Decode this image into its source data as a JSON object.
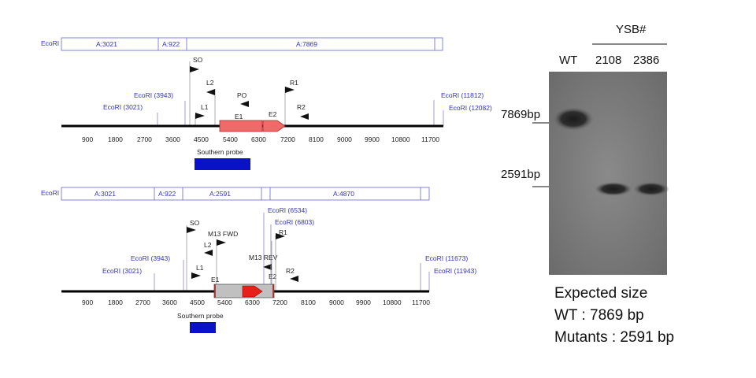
{
  "map1": {
    "enzyme_label": "EcoRI",
    "fragments": [
      "A:3021",
      "A:922",
      "A:7869"
    ],
    "sites": [
      "EcoRI (3943)",
      "EcoRI (3021)",
      "EcoRI (11812)",
      "EcoRI (12082)"
    ],
    "primers": [
      "SO",
      "L2",
      "L1",
      "PO",
      "E1",
      "E2",
      "R1",
      "R2"
    ],
    "ticks": [
      "900",
      "1800",
      "2700",
      "3600",
      "4500",
      "5400",
      "6300",
      "7200",
      "8100",
      "9000",
      "9900",
      "10800",
      "11700"
    ],
    "probe_label": "Southern probe"
  },
  "map2": {
    "enzyme_label": "EcoRI",
    "fragments": [
      "A:3021",
      "A:922",
      "A:2591",
      "A:4870"
    ],
    "sites": [
      "EcoRI (3943)",
      "EcoRI (3021)",
      "EcoRI (6534)",
      "EcoRI (6803)",
      "EcoRI (11673)",
      "EcoRI (11943)"
    ],
    "primers": [
      "SO",
      "M13 FWD",
      "L2",
      "L1",
      "E1",
      "M13 REV",
      "E2",
      "R1",
      "R2"
    ],
    "ticks": [
      "900",
      "1800",
      "2700",
      "3600",
      "4500",
      "5400",
      "6300",
      "7200",
      "8100",
      "9000",
      "9900",
      "10800",
      "11700"
    ],
    "probe_label": "Southern probe"
  },
  "gel": {
    "group_label": "YSB#",
    "lanes": [
      "WT",
      "2108",
      "2386"
    ],
    "markers": [
      "7869bp",
      "2591bp"
    ]
  },
  "notes": {
    "line1": "Expected size",
    "line2": "WT : 7869 bp",
    "line3": "Mutants : 2591 bp"
  },
  "colors": {
    "exon": "#f06a6a",
    "arrow_red": "#e8201a",
    "mutant_box": "#c0c0c0",
    "probe": "#0a12c8",
    "site_blue": "#3333bb"
  }
}
